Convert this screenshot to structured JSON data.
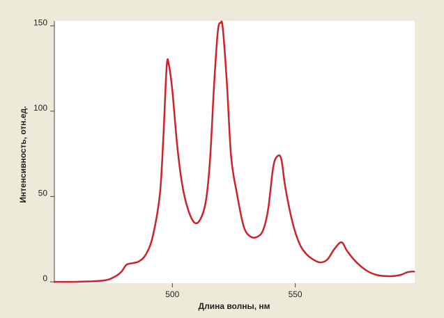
{
  "chart_data": {
    "type": "line",
    "x_label": "Длина волны, нм",
    "y_label": "Интенсивность, отн.ед.",
    "x": [
      452,
      460.8,
      472,
      476.4,
      479.3,
      481.3,
      484,
      486.4,
      489.2,
      492,
      494.9,
      496.3,
      497.7,
      498.6,
      500,
      502,
      504,
      506.3,
      509,
      511.4,
      513.6,
      515.3,
      517,
      518.5,
      519.6,
      520.5,
      522.2,
      523.9,
      526.1,
      529,
      531.8,
      534.7,
      537,
      539,
      541,
      542.6,
      544.3,
      546,
      548.9,
      551.7,
      554.5,
      557.4,
      560.2,
      563,
      565.9,
      568.8,
      571,
      574.4,
      578.7,
      583,
      588.6,
      592.9,
      595.7,
      598.6
    ],
    "series": [
      {
        "color": "#d2202b",
        "values": [
          0,
          0,
          0.8,
          2.9,
          6,
          10,
          11,
          12,
          16,
          26.5,
          51,
          83.6,
          126.4,
          127,
          112,
          79.5,
          57,
          42.8,
          34.7,
          36.7,
          47,
          71,
          116,
          146.8,
          151.7,
          148.8,
          116,
          73.4,
          53,
          32.6,
          26.5,
          26.5,
          30.6,
          42.8,
          67,
          73.4,
          72,
          55,
          34.7,
          22.4,
          16.3,
          13,
          11.4,
          13,
          19.2,
          23.2,
          18.3,
          12.2,
          6.9,
          4.1,
          3.3,
          4.1,
          5.7,
          6.1
        ]
      }
    ],
    "xlim": [
      452,
      598.6
    ],
    "ylim": [
      -0.8,
      152.9
    ],
    "xticks": [
      500,
      550
    ],
    "yticks": [
      0,
      50,
      100,
      150
    ]
  }
}
